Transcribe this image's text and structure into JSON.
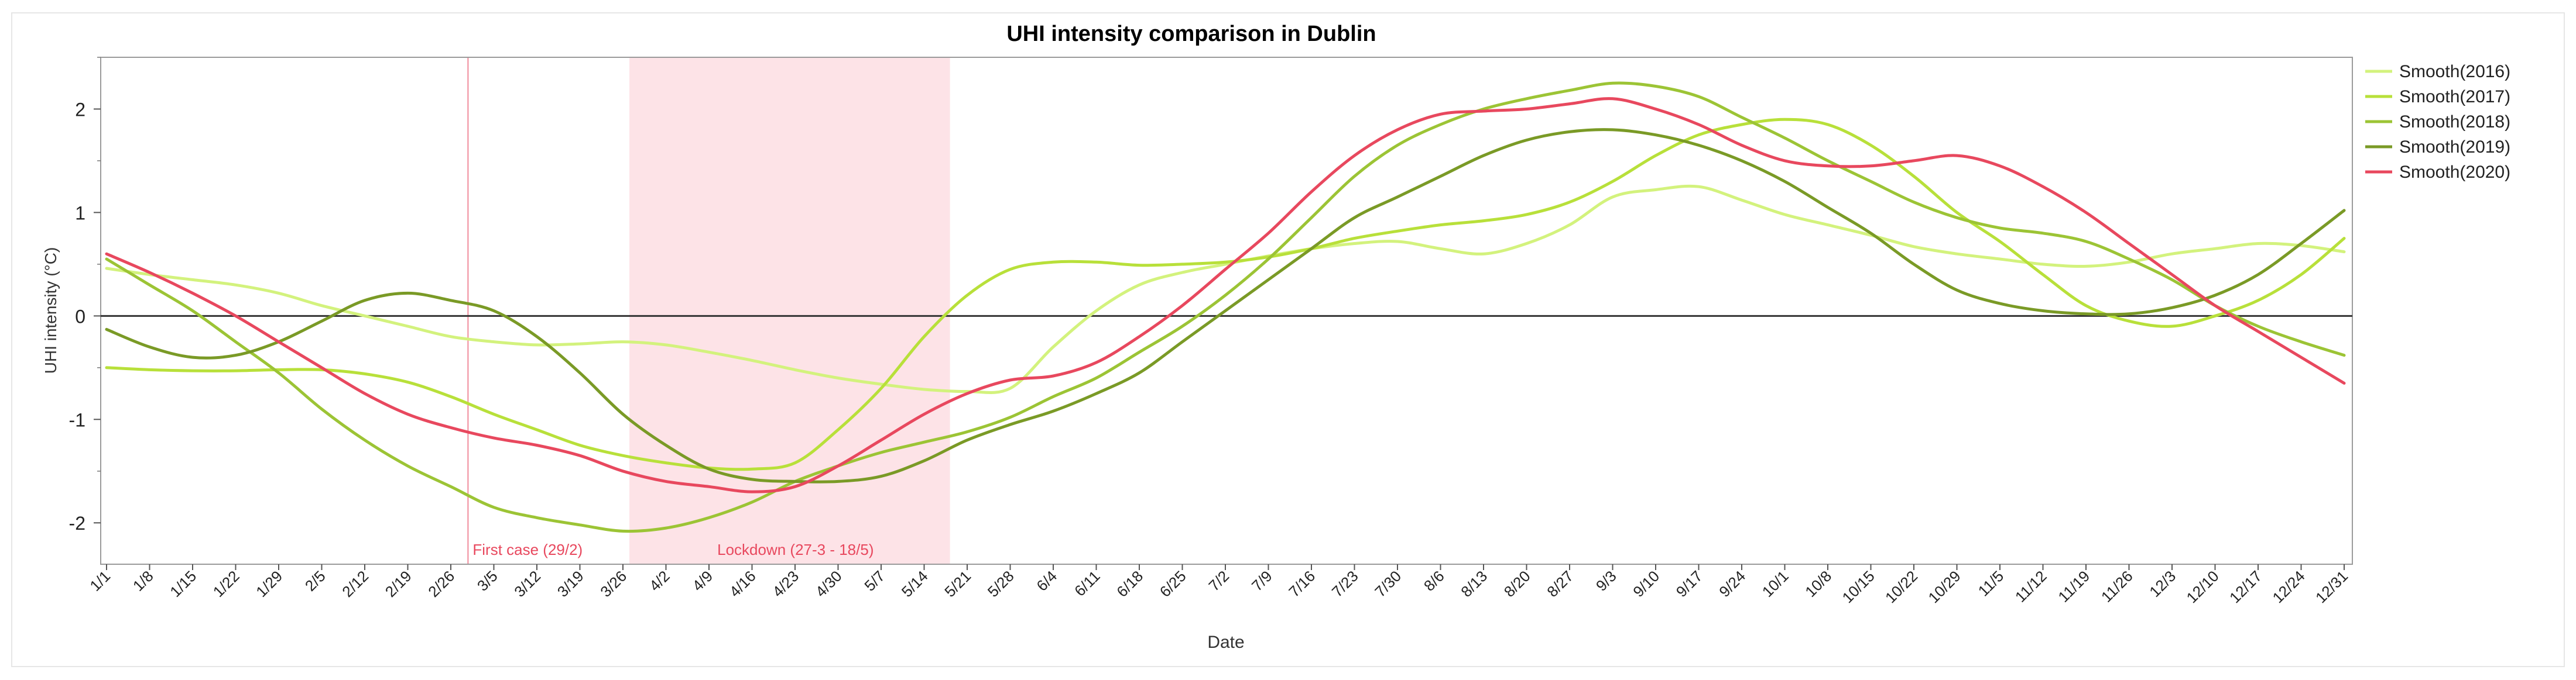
{
  "chart_data": {
    "type": "line",
    "title": "UHI intensity comparison in Dublin",
    "xlabel": "Date",
    "ylabel": "UHI intensity (°C)",
    "ylim": [
      -2.4,
      2.5
    ],
    "yticks": [
      -2,
      -1,
      0,
      1,
      2
    ],
    "grid": false,
    "legend_position": "right",
    "x_labels": [
      "1/1",
      "1/8",
      "1/15",
      "1/22",
      "1/29",
      "2/5",
      "2/12",
      "2/19",
      "2/26",
      "3/5",
      "3/12",
      "3/19",
      "3/26",
      "4/2",
      "4/9",
      "4/16",
      "4/23",
      "4/30",
      "5/7",
      "5/14",
      "5/21",
      "5/28",
      "6/4",
      "6/11",
      "6/18",
      "6/25",
      "7/2",
      "7/9",
      "7/16",
      "7/23",
      "7/30",
      "8/6",
      "8/13",
      "8/20",
      "8/27",
      "9/3",
      "9/10",
      "9/17",
      "9/24",
      "10/1",
      "10/8",
      "10/15",
      "10/22",
      "10/29",
      "11/5",
      "11/12",
      "11/19",
      "11/26",
      "12/3",
      "12/10",
      "12/17",
      "12/24",
      "12/31"
    ],
    "reference_line": {
      "y": 0
    },
    "annotations": [
      {
        "label": "First case (29/2)",
        "type": "vline",
        "x_index": 8.4
      },
      {
        "label": "Lockdown (27-3 - 18/5)",
        "type": "band",
        "x_start_index": 12.15,
        "x_end_index": 19.6
      }
    ],
    "series": [
      {
        "name": "Smooth(2016)",
        "color": "#d3f27d",
        "values": [
          0.46,
          0.4,
          0.35,
          0.3,
          0.22,
          0.1,
          0.0,
          -0.1,
          -0.2,
          -0.25,
          -0.28,
          -0.27,
          -0.25,
          -0.28,
          -0.35,
          -0.43,
          -0.52,
          -0.6,
          -0.66,
          -0.71,
          -0.73,
          -0.7,
          -0.3,
          0.05,
          0.3,
          0.42,
          0.5,
          0.58,
          0.65,
          0.7,
          0.72,
          0.65,
          0.6,
          0.7,
          0.88,
          1.15,
          1.22,
          1.25,
          1.12,
          0.98,
          0.88,
          0.78,
          0.67,
          0.6,
          0.55,
          0.5,
          0.48,
          0.52,
          0.6,
          0.65,
          0.7,
          0.68,
          0.62
        ]
      },
      {
        "name": "Smooth(2017)",
        "color": "#b8e03a",
        "values": [
          -0.5,
          -0.52,
          -0.53,
          -0.53,
          -0.52,
          -0.52,
          -0.56,
          -0.64,
          -0.78,
          -0.95,
          -1.1,
          -1.25,
          -1.35,
          -1.42,
          -1.47,
          -1.48,
          -1.42,
          -1.1,
          -0.7,
          -0.2,
          0.2,
          0.45,
          0.52,
          0.52,
          0.49,
          0.5,
          0.52,
          0.57,
          0.65,
          0.75,
          0.82,
          0.88,
          0.92,
          0.98,
          1.1,
          1.3,
          1.55,
          1.75,
          1.85,
          1.9,
          1.85,
          1.65,
          1.35,
          1.0,
          0.72,
          0.4,
          0.1,
          -0.05,
          -0.1,
          0.0,
          0.15,
          0.4,
          0.75
        ]
      },
      {
        "name": "Smooth(2018)",
        "color": "#9cc435",
        "values": [
          0.55,
          0.3,
          0.05,
          -0.25,
          -0.55,
          -0.9,
          -1.2,
          -1.45,
          -1.65,
          -1.85,
          -1.95,
          -2.02,
          -2.08,
          -2.05,
          -1.95,
          -1.8,
          -1.6,
          -1.45,
          -1.32,
          -1.22,
          -1.12,
          -0.98,
          -0.78,
          -0.6,
          -0.35,
          -0.1,
          0.2,
          0.55,
          0.95,
          1.35,
          1.65,
          1.85,
          2.0,
          2.1,
          2.18,
          2.25,
          2.22,
          2.12,
          1.92,
          1.72,
          1.5,
          1.3,
          1.1,
          0.95,
          0.85,
          0.8,
          0.72,
          0.55,
          0.35,
          0.1,
          -0.1,
          -0.25,
          -0.38
        ]
      },
      {
        "name": "Smooth(2019)",
        "color": "#7a9a26",
        "values": [
          -0.13,
          -0.3,
          -0.4,
          -0.38,
          -0.25,
          -0.05,
          0.15,
          0.22,
          0.15,
          0.05,
          -0.2,
          -0.55,
          -0.95,
          -1.25,
          -1.48,
          -1.58,
          -1.6,
          -1.6,
          -1.55,
          -1.4,
          -1.2,
          -1.05,
          -0.92,
          -0.75,
          -0.55,
          -0.25,
          0.05,
          0.35,
          0.65,
          0.95,
          1.15,
          1.35,
          1.55,
          1.7,
          1.78,
          1.8,
          1.75,
          1.65,
          1.5,
          1.3,
          1.05,
          0.8,
          0.5,
          0.25,
          0.12,
          0.05,
          0.02,
          0.02,
          0.08,
          0.2,
          0.4,
          0.7,
          1.02
        ]
      },
      {
        "name": "Smooth(2020)",
        "color": "#e8485e",
        "values": [
          0.6,
          0.42,
          0.22,
          0.0,
          -0.25,
          -0.5,
          -0.75,
          -0.95,
          -1.08,
          -1.18,
          -1.25,
          -1.35,
          -1.5,
          -1.6,
          -1.65,
          -1.7,
          -1.65,
          -1.45,
          -1.2,
          -0.95,
          -0.75,
          -0.62,
          -0.58,
          -0.45,
          -0.2,
          0.1,
          0.45,
          0.8,
          1.2,
          1.55,
          1.8,
          1.95,
          1.98,
          2.0,
          2.05,
          2.1,
          2.0,
          1.85,
          1.65,
          1.5,
          1.45,
          1.45,
          1.5,
          1.55,
          1.45,
          1.25,
          1.0,
          0.7,
          0.4,
          0.1,
          -0.15,
          -0.4,
          -0.65
        ]
      }
    ]
  }
}
